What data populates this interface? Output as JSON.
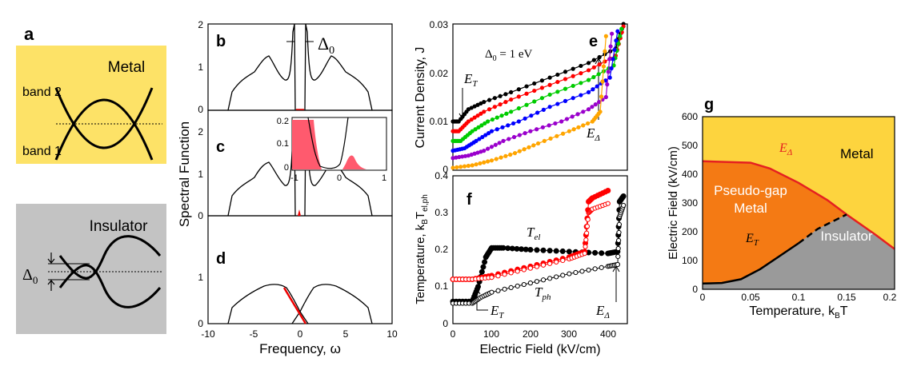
{
  "panel_labels": {
    "a": "a",
    "b": "b",
    "c": "c",
    "d": "d",
    "e": "e",
    "f": "f",
    "g": "g"
  },
  "panel_a": {
    "metal_title": "Metal",
    "band2": "band 2",
    "band1": "band 1",
    "insulator_title": "Insulator",
    "delta0": "Δ",
    "delta0_sub": "0",
    "colors": {
      "metal_bg": "#fde267",
      "insulator_bg": "#c3c3c3"
    }
  },
  "panel_bcd": {
    "ylabel": "Spectral Function",
    "xlabel": "Frequency, ω",
    "delta_annot": "Δ",
    "delta_sub": "0",
    "b_yticks": [
      "0",
      "1",
      "2"
    ],
    "c_yticks": [
      "0",
      "1",
      "2"
    ],
    "d_yticks": [
      "0",
      "1"
    ],
    "xticks": [
      "-10",
      "-5",
      "0",
      "5",
      "10"
    ],
    "inset_yticks": [
      "0",
      "0.1",
      "0.2"
    ],
    "inset_xticks": [
      "-1",
      "0",
      "1"
    ]
  },
  "panel_e": {
    "ylabel": "Current Density, J",
    "annot_delta": "Δ",
    "annot_delta_sub": "0",
    "annot_delta_rest": " = 1 eV",
    "ET": "E",
    "ET_sub": "T",
    "EDelta": "E",
    "EDelta_sub": "Δ",
    "yticks": [
      "0",
      "0.01",
      "0.02",
      "0.03"
    ]
  },
  "panel_f": {
    "ylabel_main": "Temperature, k",
    "ylabel_sub1": "B",
    "ylabel_mid": "T",
    "ylabel_sub2": "el,ph",
    "xlabel": "Electric Field (kV/cm)",
    "Tel": "T",
    "Tel_sub": "el",
    "Tph": "T",
    "Tph_sub": "ph",
    "ET": "E",
    "ET_sub": "T",
    "EDelta": "E",
    "EDelta_sub": "Δ",
    "yticks": [
      "0",
      "0.1",
      "0.2",
      "0.3",
      "0.4"
    ],
    "xticks": [
      "0",
      "100",
      "200",
      "300",
      "400"
    ]
  },
  "panel_g": {
    "ylabel": "Electric Field (kV/cm)",
    "xlabel_main": "Temperature, k",
    "xlabel_sub": "B",
    "xlabel_end": "T",
    "metal": "Metal",
    "pseudo1": "Pseudo-gap",
    "pseudo2": "Metal",
    "insulator": "Insulator",
    "EDelta": "E",
    "EDelta_sub": "Δ",
    "ET": "E",
    "ET_sub": "T",
    "yticks": [
      "0",
      "100",
      "200",
      "300",
      "400",
      "500",
      "600"
    ],
    "xticks": [
      "0",
      "0.05",
      "0.1",
      "0.15",
      "0.2"
    ],
    "colors": {
      "metal": "#fdd43e",
      "pseudo": "#f47a14",
      "insulator": "#9a9a9a",
      "boundary": "#e52020"
    }
  },
  "chart_data": [
    {
      "type": "line",
      "id": "e",
      "title": "",
      "xlabel": "Electric Field (kV/cm)",
      "ylabel": "Current Density, J",
      "xlim": [
        0,
        450
      ],
      "ylim": [
        0,
        0.03
      ],
      "series": [
        {
          "name": "black",
          "color": "#000000",
          "x": [
            0,
            15,
            40,
            80,
            150,
            250,
            350,
            420,
            440
          ],
          "y": [
            0.01,
            0.01,
            0.0125,
            0.014,
            0.016,
            0.019,
            0.022,
            0.025,
            0.03
          ]
        },
        {
          "name": "red",
          "color": "#ff0000",
          "x": [
            0,
            15,
            40,
            80,
            150,
            250,
            350,
            420,
            440
          ],
          "y": [
            0.008,
            0.008,
            0.01,
            0.012,
            0.0145,
            0.0175,
            0.0205,
            0.0235,
            0.0295
          ]
        },
        {
          "name": "green",
          "color": "#00cc00",
          "x": [
            0,
            20,
            50,
            90,
            150,
            250,
            350,
            415,
            435
          ],
          "y": [
            0.006,
            0.006,
            0.008,
            0.01,
            0.012,
            0.0155,
            0.0185,
            0.0215,
            0.029
          ]
        },
        {
          "name": "blue",
          "color": "#0000ff",
          "x": [
            0,
            30,
            60,
            100,
            170,
            250,
            350,
            405,
            425
          ],
          "y": [
            0.004,
            0.0045,
            0.006,
            0.008,
            0.01,
            0.013,
            0.016,
            0.019,
            0.0285
          ]
        },
        {
          "name": "violet",
          "color": "#9a00cc",
          "x": [
            0,
            40,
            80,
            130,
            200,
            280,
            350,
            395,
            410
          ],
          "y": [
            0.0025,
            0.003,
            0.004,
            0.006,
            0.008,
            0.01,
            0.0125,
            0.015,
            0.028
          ]
        },
        {
          "name": "orange",
          "color": "#ffa500",
          "x": [
            0,
            50,
            100,
            160,
            220,
            300,
            360,
            380,
            395
          ],
          "y": [
            0.0005,
            0.001,
            0.002,
            0.0035,
            0.0055,
            0.008,
            0.01,
            0.012,
            0.0275
          ]
        }
      ]
    },
    {
      "type": "line",
      "id": "f",
      "title": "",
      "xlabel": "Electric Field (kV/cm)",
      "ylabel": "Temperature, kB T el,ph",
      "xlim": [
        0,
        450
      ],
      "ylim": [
        0,
        0.4
      ],
      "series": [
        {
          "name": "T_el (black filled)",
          "color": "#000000",
          "x": [
            0,
            50,
            65,
            85,
            100,
            130,
            200,
            300,
            400,
            425,
            430,
            440
          ],
          "y": [
            0.06,
            0.06,
            0.1,
            0.18,
            0.205,
            0.205,
            0.2,
            0.195,
            0.19,
            0.195,
            0.33,
            0.345
          ]
        },
        {
          "name": "red filled",
          "color": "#ff0000",
          "x": [
            0,
            50,
            100,
            200,
            300,
            340,
            350,
            360,
            400
          ],
          "y": [
            0.12,
            0.12,
            0.13,
            0.155,
            0.18,
            0.195,
            0.33,
            0.34,
            0.36
          ]
        },
        {
          "name": "red open",
          "color": "#ff0000",
          "x": [
            0,
            50,
            100,
            200,
            300,
            340,
            350,
            360,
            400
          ],
          "y": [
            0.12,
            0.12,
            0.125,
            0.15,
            0.175,
            0.19,
            0.3,
            0.31,
            0.325
          ]
        },
        {
          "name": "T_ph (black open)",
          "color": "#000000",
          "x": [
            0,
            50,
            70,
            100,
            200,
            300,
            400,
            425,
            430,
            440
          ],
          "y": [
            0.055,
            0.055,
            0.07,
            0.085,
            0.11,
            0.135,
            0.155,
            0.16,
            0.29,
            0.32
          ]
        }
      ]
    },
    {
      "type": "area",
      "id": "g",
      "title": "",
      "xlabel": "Temperature, kB T",
      "ylabel": "Electric Field (kV/cm)",
      "xlim": [
        0,
        0.2
      ],
      "ylim": [
        0,
        600
      ],
      "series": [
        {
          "name": "E_Delta boundary",
          "color": "#e52020",
          "x": [
            0,
            0.05,
            0.07,
            0.1,
            0.13,
            0.15,
            0.18,
            0.2
          ],
          "y": [
            445,
            440,
            420,
            370,
            310,
            260,
            190,
            140
          ]
        },
        {
          "name": "E_T boundary (solid)",
          "color": "#000000",
          "x": [
            0,
            0.02,
            0.04,
            0.06,
            0.08,
            0.1
          ],
          "y": [
            20,
            22,
            35,
            70,
            115,
            160
          ]
        },
        {
          "name": "E_T boundary (dashed)",
          "color": "#000000",
          "x": [
            0.1,
            0.12,
            0.15
          ],
          "y": [
            160,
            210,
            260
          ]
        }
      ],
      "regions": [
        "Metal",
        "Pseudo-gap Metal",
        "Insulator"
      ]
    }
  ]
}
